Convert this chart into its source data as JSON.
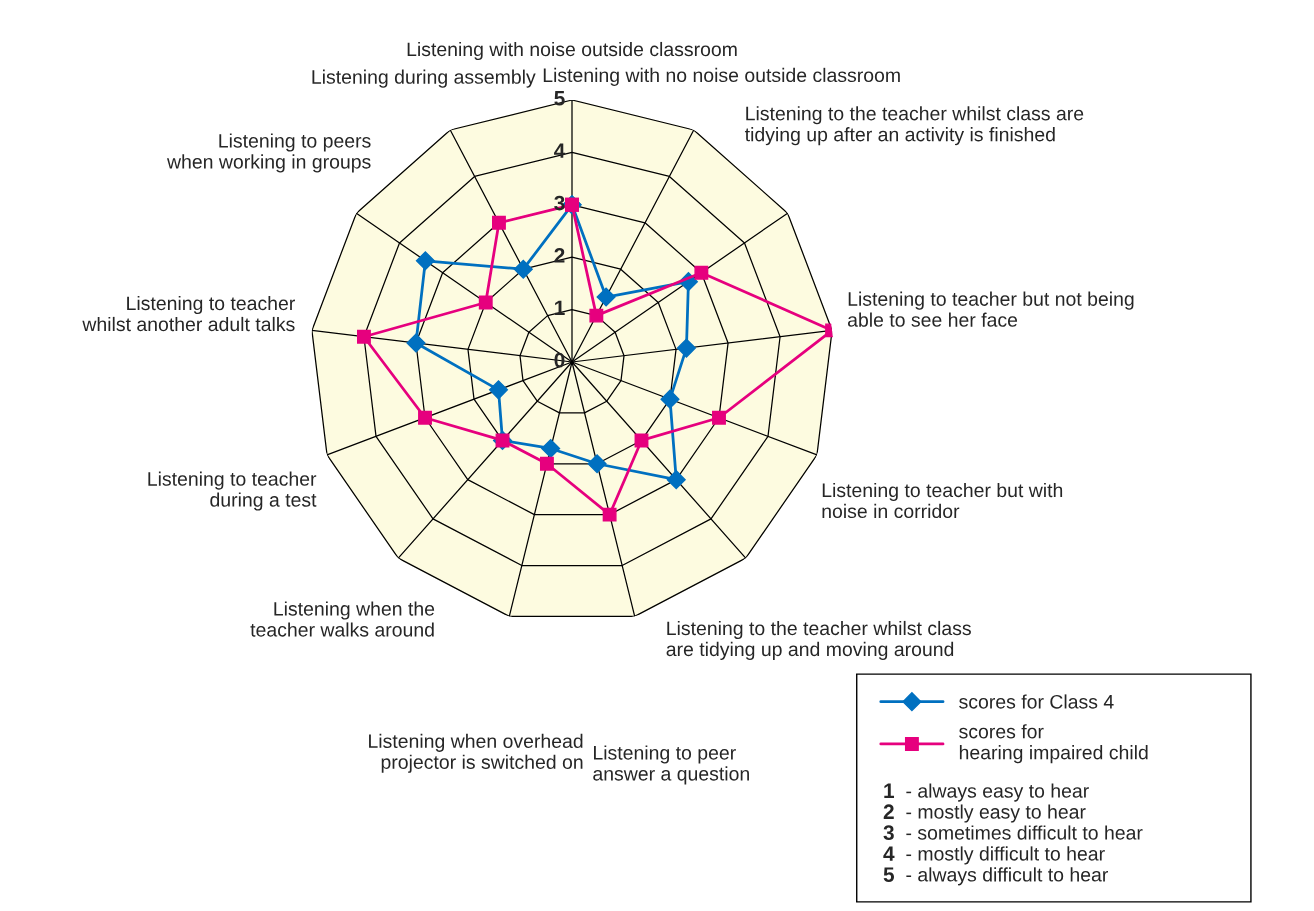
{
  "chart_data": {
    "type": "radar",
    "categories": [
      "Listening with noise outside classroom",
      "Listening with no noise outside classroom",
      "Listening to the teacher whilst class are\ntidying up after an activity is finished",
      "Listening to teacher but not being\nable to see her face",
      "Listening to teacher but with\nnoise in corridor",
      "Listening to the teacher whilst class\nare tidying up and moving around",
      "Listening to peer\nanswer a question",
      "Listening when overhead\nprojector is switched on",
      "Listening when the\nteacher walks around",
      "Listening to teacher\nduring a test",
      "Listening to teacher\nwhilst another adult talks",
      "Listening to peers\nwhen working in groups",
      "Listening during assembly"
    ],
    "series": [
      {
        "name": "scores for Class 4",
        "color": "#0070c0",
        "marker": "diamond",
        "values": [
          3.0,
          1.4,
          2.7,
          2.2,
          2.0,
          3.0,
          2.0,
          1.7,
          2.0,
          1.5,
          3.0,
          3.4,
          2.0
        ]
      },
      {
        "name": "scores for\nhearing impaired child",
        "color": "#e6007e",
        "marker": "square",
        "values": [
          3,
          1,
          3,
          5,
          3,
          2,
          3,
          2,
          2,
          3,
          4,
          2,
          3
        ]
      }
    ],
    "ylim": [
      0,
      5
    ],
    "yticks": [
      0,
      1,
      2,
      3,
      4,
      5
    ],
    "grid": true,
    "legend": "bottom right",
    "annotations": [
      "1 - always easy to hear",
      "2 - mostly easy to hear",
      "3 - sometimes difficult to hear",
      "4 - mostly difficult to hear",
      "5 - always difficult to hear"
    ]
  }
}
